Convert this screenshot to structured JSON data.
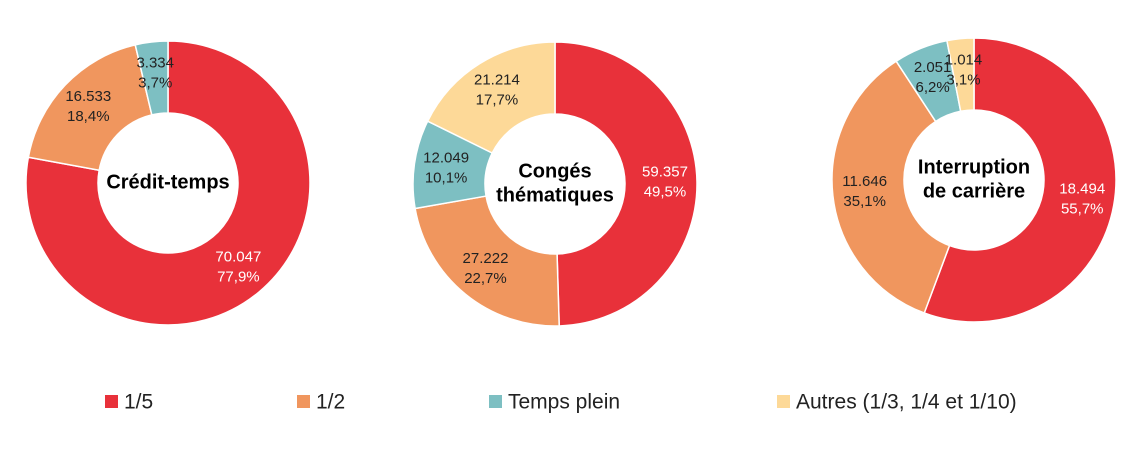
{
  "legend": [
    {
      "name": "1/5",
      "color": "#e8313a"
    },
    {
      "name": "1/2",
      "color": "#f0965e"
    },
    {
      "name": "Temps plein",
      "color": "#7dbfc2"
    },
    {
      "name": "Autres (1/3, 1/4 et 1/10)",
      "color": "#fdd998"
    }
  ],
  "chart_data": [
    {
      "type": "donut",
      "title": [
        "Crédit-temps"
      ],
      "categories": [
        "1/5",
        "1/2",
        "Temps plein"
      ],
      "values": [
        70047,
        16533,
        3334
      ],
      "value_labels": [
        "70.047",
        "16.533",
        "3.334"
      ],
      "percents": [
        77.9,
        18.4,
        3.7
      ],
      "percent_labels": [
        "77,9%",
        "18,4%",
        "3,7%"
      ]
    },
    {
      "type": "donut",
      "title": [
        "Congés",
        "thématiques"
      ],
      "categories": [
        "1/5",
        "1/2",
        "Temps plein",
        "Autres (1/3, 1/4 et 1/10)"
      ],
      "values": [
        59357,
        27222,
        12049,
        21214
      ],
      "value_labels": [
        "59.357",
        "27.222",
        "12.049",
        "21.214"
      ],
      "percents": [
        49.5,
        22.7,
        10.1,
        17.7
      ],
      "percent_labels": [
        "49,5%",
        "22,7%",
        "10,1%",
        "17,7%"
      ]
    },
    {
      "type": "donut",
      "title": [
        "Interruption",
        "de carrière"
      ],
      "categories": [
        "1/5",
        "1/2",
        "Temps plein",
        "Autres (1/3, 1/4 et 1/10)"
      ],
      "values": [
        18494,
        11646,
        2051,
        1014
      ],
      "value_labels": [
        "18.494",
        "11.646",
        "2.051",
        "1.014"
      ],
      "percents": [
        55.7,
        35.1,
        6.2,
        3.1
      ],
      "percent_labels": [
        "55,7%",
        "35,1%",
        "6,2%",
        "3,1%"
      ]
    }
  ]
}
